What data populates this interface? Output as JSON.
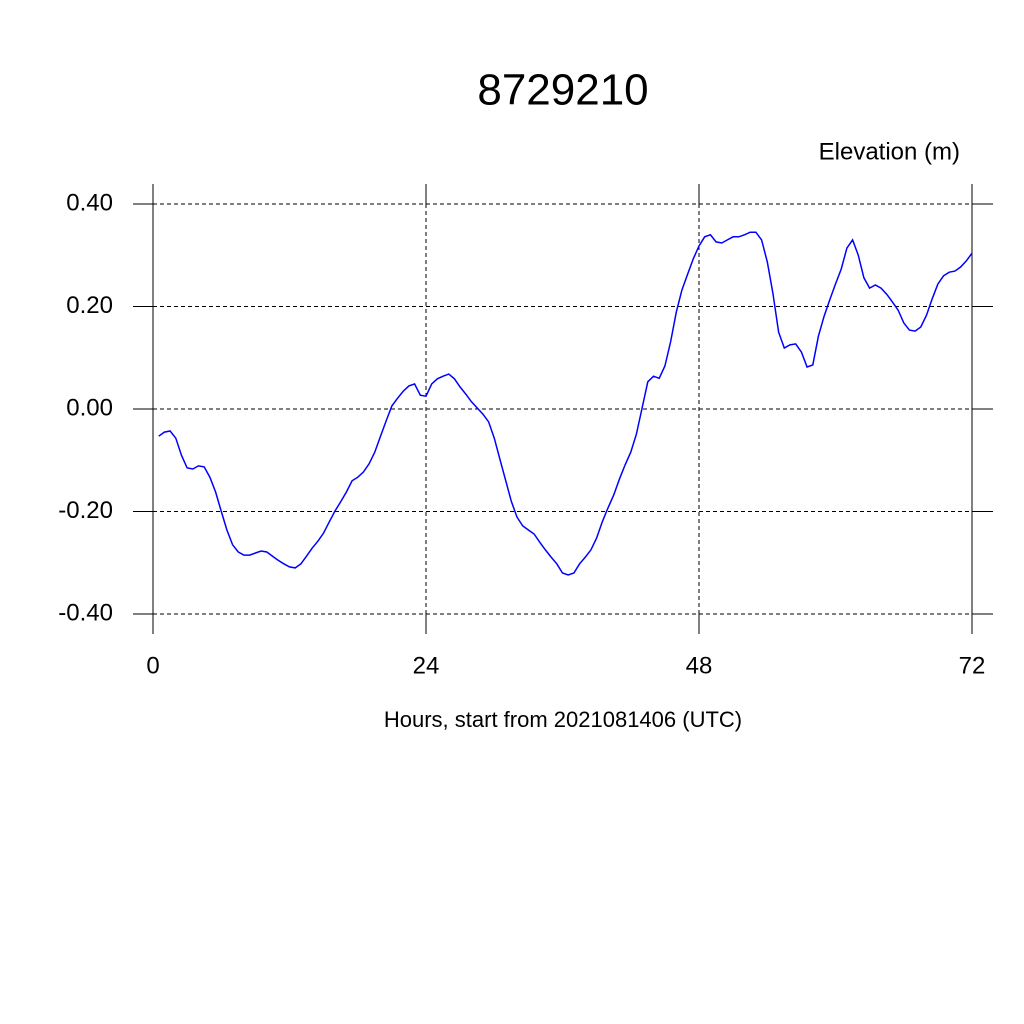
{
  "chart_data": {
    "type": "line",
    "title": "8729210",
    "y_label": "Elevation (m)",
    "x_label": "Hours, start from 2021081406 (UTC)",
    "x": [
      0.5,
      1,
      1.5,
      2,
      2.5,
      3,
      3.5,
      4,
      4.5,
      5,
      5.5,
      6,
      6.5,
      7,
      7.5,
      8,
      8.5,
      9,
      9.5,
      10,
      10.5,
      11,
      11.5,
      12,
      12.5,
      13,
      13.5,
      14,
      14.5,
      15,
      15.5,
      16,
      16.5,
      17,
      17.5,
      18,
      18.5,
      19,
      19.5,
      20,
      20.5,
      21,
      21.5,
      22,
      22.5,
      23,
      23.5,
      24,
      24.5,
      25,
      25.5,
      26,
      26.5,
      27,
      27.5,
      28,
      28.5,
      29,
      29.5,
      30,
      30.5,
      31,
      31.5,
      32,
      32.5,
      33,
      33.5,
      34,
      34.5,
      35,
      35.5,
      36,
      36.5,
      37,
      37.5,
      38,
      38.5,
      39,
      39.5,
      40,
      40.5,
      41,
      41.5,
      42,
      42.5,
      43,
      43.5,
      44,
      44.5,
      45,
      45.5,
      46,
      46.5,
      47,
      47.5,
      48,
      48.5,
      49,
      49.5,
      50,
      50.5,
      51,
      51.5,
      52,
      52.5,
      53,
      53.5,
      54,
      54.5,
      55,
      55.5,
      56,
      56.5,
      57,
      57.5,
      58,
      58.5,
      59,
      59.5,
      60,
      60.5,
      61,
      61.5,
      62,
      62.5,
      63,
      63.5,
      64,
      64.5,
      65,
      65.5,
      66,
      66.5,
      67,
      67.5,
      68,
      68.5,
      69,
      69.5,
      70,
      70.5,
      71,
      71.5,
      72
    ],
    "series": [
      {
        "name": "Elevation",
        "color": "#0000ff",
        "values": [
          -0.053,
          -0.045,
          -0.043,
          -0.057,
          -0.09,
          -0.115,
          -0.117,
          -0.111,
          -0.113,
          -0.133,
          -0.162,
          -0.2,
          -0.236,
          -0.265,
          -0.279,
          -0.285,
          -0.285,
          -0.281,
          -0.277,
          -0.279,
          -0.287,
          -0.295,
          -0.302,
          -0.308,
          -0.31,
          -0.302,
          -0.287,
          -0.271,
          -0.258,
          -0.242,
          -0.22,
          -0.199,
          -0.181,
          -0.162,
          -0.14,
          -0.133,
          -0.123,
          -0.107,
          -0.084,
          -0.053,
          -0.023,
          0.006,
          0.021,
          0.035,
          0.045,
          0.049,
          0.027,
          0.025,
          0.049,
          0.059,
          0.064,
          0.068,
          0.059,
          0.043,
          0.029,
          0.014,
          0.002,
          -0.01,
          -0.025,
          -0.057,
          -0.098,
          -0.139,
          -0.18,
          -0.211,
          -0.228,
          -0.236,
          -0.244,
          -0.26,
          -0.275,
          -0.289,
          -0.302,
          -0.32,
          -0.324,
          -0.32,
          -0.302,
          -0.289,
          -0.275,
          -0.252,
          -0.22,
          -0.193,
          -0.168,
          -0.137,
          -0.109,
          -0.084,
          -0.049,
          0.002,
          0.053,
          0.064,
          0.06,
          0.084,
          0.131,
          0.189,
          0.232,
          0.263,
          0.293,
          0.318,
          0.336,
          0.34,
          0.326,
          0.324,
          0.33,
          0.336,
          0.336,
          0.34,
          0.345,
          0.345,
          0.33,
          0.287,
          0.226,
          0.15,
          0.119,
          0.125,
          0.127,
          0.111,
          0.082,
          0.086,
          0.142,
          0.181,
          0.213,
          0.244,
          0.273,
          0.314,
          0.33,
          0.3,
          0.256,
          0.236,
          0.242,
          0.236,
          0.224,
          0.209,
          0.193,
          0.168,
          0.154,
          0.152,
          0.16,
          0.183,
          0.215,
          0.244,
          0.26,
          0.267,
          0.269,
          0.277,
          0.289,
          0.304
        ]
      }
    ],
    "xlim": [
      0,
      72
    ],
    "xticks": [
      0,
      24,
      48,
      72
    ],
    "ylim": [
      -0.4,
      0.4
    ],
    "yticks": [
      {
        "value": -0.4,
        "label": "-0.40"
      },
      {
        "value": -0.2,
        "label": "-0.20"
      },
      {
        "value": 0,
        "label": "0.00"
      },
      {
        "value": 0.2,
        "label": "0.20"
      },
      {
        "value": 0.4,
        "label": "0.40"
      }
    ],
    "grid": true
  }
}
